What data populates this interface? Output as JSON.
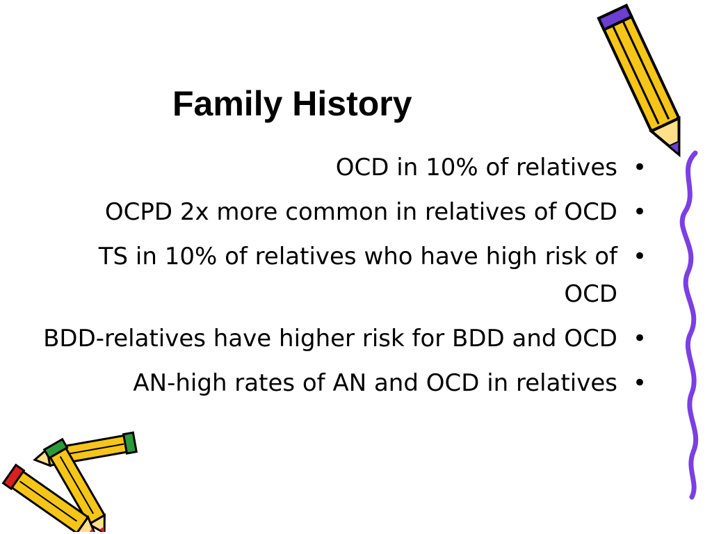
{
  "slide": {
    "title": "Family History",
    "bullet_symbol": "•",
    "bullets": [
      {
        "text": "OCD in 10% of relatives"
      },
      {
        "text": "OCPD 2x more common in relatives of OCD"
      },
      {
        "text": "TS in 10% of relatives who have high risk of OCD"
      },
      {
        "text": "BDD-relatives have higher risk for BDD and OCD"
      },
      {
        "text": "AN-high rates of AN and OCD in relatives"
      }
    ]
  },
  "decorations": {
    "pencil_top_right": "pencil-icon",
    "squiggle_right": "scribble-line-icon",
    "pencils_bottom_left": "pencils-icon",
    "colors": {
      "pencil_body": "#f5c518",
      "pencil_outline": "#000000",
      "pencil_tip_purple": "#6a3fd1",
      "pencil_tip_red": "#d92020",
      "pencil_tip_green": "#2a9a3a",
      "squiggle": "#7b3fe4"
    }
  }
}
